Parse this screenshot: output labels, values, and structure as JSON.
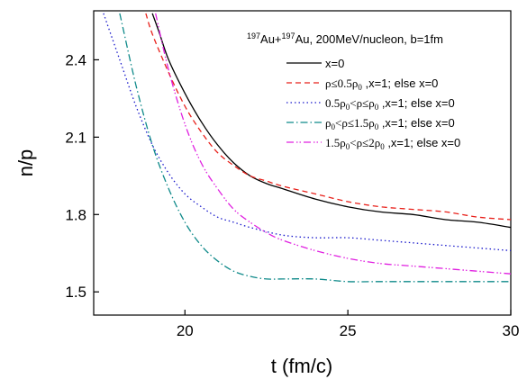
{
  "chart_data": {
    "type": "line",
    "xlabel": "t (fm/c)",
    "ylabel": "n/p",
    "xlim": [
      17.2,
      30
    ],
    "ylim": [
      1.41,
      2.59
    ],
    "xticks": [
      20,
      25,
      30
    ],
    "yticks": [
      1.5,
      1.8,
      2.1,
      2.4
    ],
    "grid": false,
    "legend_position": "top-right",
    "annotation": {
      "a1": "197",
      "n1": "Au+",
      "a2": "197",
      "n2": "Au, 200MeV/nucleon, b=1fm"
    },
    "series": [
      {
        "name": "x=0",
        "color": "#000000",
        "dash": "",
        "x": [
          19.0,
          19.2,
          19.5,
          20.0,
          20.5,
          21.0,
          21.5,
          22.0,
          22.5,
          23.0,
          24.0,
          25.0,
          26.0,
          27.0,
          28.0,
          29.0,
          30.0
        ],
        "y": [
          2.58,
          2.51,
          2.4,
          2.27,
          2.16,
          2.07,
          2.0,
          1.95,
          1.92,
          1.9,
          1.86,
          1.83,
          1.81,
          1.8,
          1.78,
          1.77,
          1.75
        ]
      },
      {
        "name": "ρ≤0.5ρ0,x=1; else x=0",
        "legend": {
          "t1": "ρ≤0.5ρ",
          "s1": "0",
          "t2": " ,x=1; else x=0"
        },
        "color": "#e8201a",
        "dash": "6,4",
        "x": [
          18.8,
          19.0,
          19.5,
          20.0,
          20.5,
          21.0,
          21.5,
          22.0,
          22.5,
          23.0,
          24.0,
          25.0,
          26.0,
          27.0,
          28.0,
          29.0,
          30.0
        ],
        "y": [
          2.58,
          2.5,
          2.35,
          2.22,
          2.12,
          2.04,
          1.99,
          1.95,
          1.93,
          1.91,
          1.88,
          1.85,
          1.83,
          1.82,
          1.81,
          1.79,
          1.78
        ]
      },
      {
        "name": "0.5ρ0<ρ≤ρ0,x=1; else x=0",
        "legend": {
          "t1": "0.5ρ",
          "s1": "0",
          "t2": "<ρ≤ρ",
          "s2": "0",
          "t3": " ,x=1; else x=0"
        },
        "color": "#1a1acc",
        "dash": "1.5,3",
        "x": [
          17.5,
          18.0,
          18.5,
          19.0,
          19.5,
          20.0,
          20.5,
          21.0,
          21.5,
          22.0,
          23.0,
          24.0,
          25.0,
          26.0,
          27.0,
          28.0,
          29.0,
          30.0
        ],
        "y": [
          2.58,
          2.4,
          2.22,
          2.07,
          1.96,
          1.88,
          1.83,
          1.79,
          1.77,
          1.75,
          1.72,
          1.71,
          1.71,
          1.7,
          1.69,
          1.68,
          1.67,
          1.66
        ]
      },
      {
        "name": "ρ0<ρ≤1.5ρ0,x=1; else x=0",
        "legend": {
          "t1": "ρ",
          "s1": "0",
          "t2": "<ρ≤1.5ρ",
          "s2": "0",
          "t3": " ,x=1; else x=0"
        },
        "color": "#0f8a8a",
        "dash": "8,3,1.5,3",
        "x": [
          18.0,
          18.5,
          19.0,
          19.5,
          20.0,
          20.5,
          21.0,
          21.5,
          22.0,
          22.5,
          23.0,
          24.0,
          25.0,
          26.0,
          27.0,
          28.0,
          29.0,
          30.0
        ],
        "y": [
          2.58,
          2.3,
          2.07,
          1.9,
          1.77,
          1.68,
          1.62,
          1.58,
          1.56,
          1.55,
          1.55,
          1.55,
          1.54,
          1.54,
          1.54,
          1.54,
          1.54,
          1.54
        ]
      },
      {
        "name": "1.5ρ0<ρ≤2ρ0,x=1; else x=0",
        "legend": {
          "t1": "1.5ρ",
          "s1": "0",
          "t2": "<ρ≤2ρ",
          "s2": "0",
          "t3": " ,x=1; else x=0"
        },
        "color": "#e020e0",
        "dash": "8,3,1.5,2,1.5,3",
        "x": [
          19.1,
          19.5,
          20.0,
          20.5,
          21.0,
          21.5,
          22.0,
          22.5,
          23.0,
          24.0,
          25.0,
          26.0,
          27.0,
          28.0,
          29.0,
          30.0
        ],
        "y": [
          2.58,
          2.36,
          2.15,
          2.0,
          1.9,
          1.82,
          1.77,
          1.73,
          1.7,
          1.66,
          1.63,
          1.61,
          1.6,
          1.59,
          1.58,
          1.57
        ]
      }
    ]
  }
}
